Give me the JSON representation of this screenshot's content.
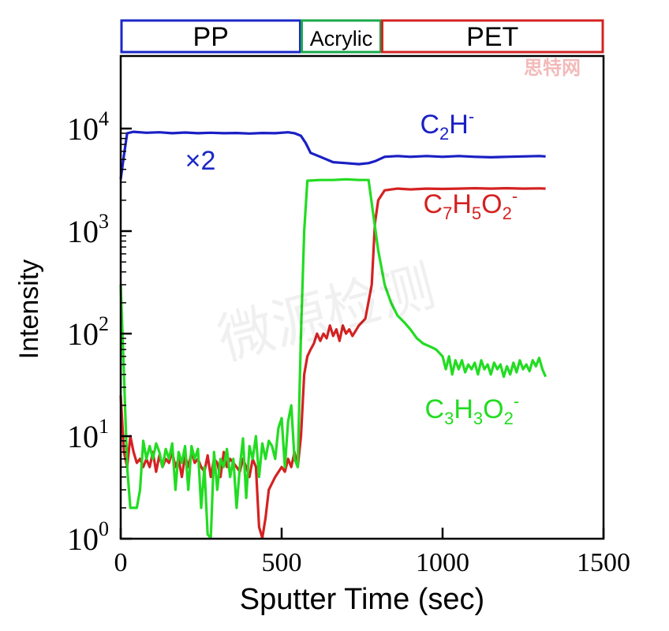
{
  "chart_data": {
    "type": "line",
    "title": "",
    "xlabel": "Sputter Time (sec)",
    "ylabel": "Intensity",
    "xlim": [
      0,
      1500
    ],
    "ylim": [
      1,
      50000
    ],
    "yscale": "log",
    "grid": false,
    "x_ticks": [
      0,
      500,
      1000,
      1500
    ],
    "y_ticks": [
      {
        "value": 1,
        "base": "10",
        "exp": "0"
      },
      {
        "value": 10,
        "base": "10",
        "exp": "1"
      },
      {
        "value": 100,
        "base": "10",
        "exp": "2"
      },
      {
        "value": 1000,
        "base": "10",
        "exp": "3"
      },
      {
        "value": 10000,
        "base": "10",
        "exp": "4"
      }
    ],
    "layers": [
      {
        "name": "PP",
        "start": 0,
        "end": 560,
        "color": "#1a28c8"
      },
      {
        "name": "Acrylic",
        "start": 560,
        "end": 810,
        "color": "#1aa84a"
      },
      {
        "name": "PET",
        "start": 810,
        "end": 1500,
        "color": "#d42424"
      }
    ],
    "annotations": [
      {
        "text": "×2",
        "x": 200,
        "y": 5500,
        "color": "#1a28c8"
      }
    ],
    "series": [
      {
        "name": "C2H-",
        "label_parts": [
          [
            "C",
            ""
          ],
          [
            "2",
            "sub"
          ],
          [
            "H",
            ""
          ],
          [
            "-",
            "sup"
          ]
        ],
        "label_at": {
          "x": 930,
          "y": 9000
        },
        "color": "#1a1fc4",
        "points": [
          [
            0,
            3200
          ],
          [
            10,
            5500
          ],
          [
            20,
            9000
          ],
          [
            40,
            9300
          ],
          [
            80,
            9100
          ],
          [
            120,
            9200
          ],
          [
            160,
            9000
          ],
          [
            200,
            9150
          ],
          [
            240,
            9000
          ],
          [
            280,
            9100
          ],
          [
            320,
            9000
          ],
          [
            360,
            9050
          ],
          [
            400,
            8950
          ],
          [
            440,
            9050
          ],
          [
            480,
            9000
          ],
          [
            520,
            9200
          ],
          [
            540,
            9000
          ],
          [
            560,
            8500
          ],
          [
            575,
            7200
          ],
          [
            590,
            5800
          ],
          [
            620,
            5300
          ],
          [
            660,
            4700
          ],
          [
            700,
            4600
          ],
          [
            740,
            4500
          ],
          [
            770,
            4600
          ],
          [
            790,
            4800
          ],
          [
            820,
            5300
          ],
          [
            860,
            5400
          ],
          [
            900,
            5300
          ],
          [
            950,
            5400
          ],
          [
            1000,
            5300
          ],
          [
            1050,
            5400
          ],
          [
            1100,
            5300
          ],
          [
            1150,
            5250
          ],
          [
            1200,
            5300
          ],
          [
            1250,
            5350
          ],
          [
            1300,
            5400
          ],
          [
            1320,
            5350
          ]
        ]
      },
      {
        "name": "C7H5O2-",
        "label_parts": [
          [
            "C",
            ""
          ],
          [
            "7",
            "sub"
          ],
          [
            "H",
            ""
          ],
          [
            "5",
            "sub"
          ],
          [
            "O",
            ""
          ],
          [
            "2",
            "sub"
          ],
          [
            "-",
            "sup"
          ]
        ],
        "label_at": {
          "x": 940,
          "y": 1500
        },
        "color": "#d42222",
        "points": [
          [
            0,
            25
          ],
          [
            10,
            7
          ],
          [
            20,
            5
          ],
          [
            30,
            10
          ],
          [
            40,
            7
          ],
          [
            50,
            5.5
          ],
          [
            60,
            6
          ],
          [
            70,
            5
          ],
          [
            80,
            6
          ],
          [
            90,
            5
          ],
          [
            100,
            7
          ],
          [
            110,
            4.5
          ],
          [
            120,
            6.5
          ],
          [
            130,
            5
          ],
          [
            140,
            6
          ],
          [
            150,
            5.5
          ],
          [
            160,
            7
          ],
          [
            170,
            5
          ],
          [
            180,
            6
          ],
          [
            190,
            4
          ],
          [
            200,
            6.5
          ],
          [
            210,
            5
          ],
          [
            220,
            7
          ],
          [
            230,
            5.5
          ],
          [
            240,
            6
          ],
          [
            250,
            5
          ],
          [
            260,
            4.5
          ],
          [
            270,
            6.5
          ],
          [
            280,
            4
          ],
          [
            290,
            6
          ],
          [
            300,
            5.5
          ],
          [
            310,
            4
          ],
          [
            320,
            7
          ],
          [
            330,
            5
          ],
          [
            340,
            6
          ],
          [
            350,
            5.5
          ],
          [
            360,
            5
          ],
          [
            370,
            4.5
          ],
          [
            380,
            6
          ],
          [
            390,
            5
          ],
          [
            400,
            4
          ],
          [
            410,
            6
          ],
          [
            420,
            5
          ],
          [
            430,
            1.3
          ],
          [
            440,
            0.9
          ],
          [
            450,
            1.6
          ],
          [
            460,
            3
          ],
          [
            480,
            4
          ],
          [
            500,
            5
          ],
          [
            510,
            4.5
          ],
          [
            520,
            6
          ],
          [
            530,
            5
          ],
          [
            540,
            7
          ],
          [
            550,
            5
          ],
          [
            560,
            10
          ],
          [
            570,
            40
          ],
          [
            580,
            60
          ],
          [
            590,
            70
          ],
          [
            600,
            80
          ],
          [
            610,
            100
          ],
          [
            620,
            85
          ],
          [
            630,
            100
          ],
          [
            640,
            90
          ],
          [
            650,
            120
          ],
          [
            660,
            95
          ],
          [
            670,
            110
          ],
          [
            680,
            85
          ],
          [
            690,
            120
          ],
          [
            700,
            100
          ],
          [
            710,
            110
          ],
          [
            720,
            95
          ],
          [
            740,
            120
          ],
          [
            760,
            140
          ],
          [
            780,
            300
          ],
          [
            790,
            1200
          ],
          [
            800,
            2000
          ],
          [
            820,
            2500
          ],
          [
            860,
            2600
          ],
          [
            900,
            2550
          ],
          [
            950,
            2600
          ],
          [
            1000,
            2580
          ],
          [
            1050,
            2600
          ],
          [
            1100,
            2620
          ],
          [
            1150,
            2600
          ],
          [
            1200,
            2620
          ],
          [
            1250,
            2600
          ],
          [
            1300,
            2610
          ],
          [
            1320,
            2600
          ]
        ]
      },
      {
        "name": "C3H3O2-",
        "label_parts": [
          [
            "C",
            ""
          ],
          [
            "3",
            "sub"
          ],
          [
            "H",
            ""
          ],
          [
            "3",
            "sub"
          ],
          [
            "O",
            ""
          ],
          [
            "2",
            "sub"
          ],
          [
            "-",
            "sup"
          ]
        ],
        "label_at": {
          "x": 945,
          "y": 15
        },
        "color": "#22dc22",
        "points": [
          [
            0,
            300
          ],
          [
            10,
            40
          ],
          [
            20,
            5
          ],
          [
            30,
            2
          ],
          [
            50,
            2
          ],
          [
            60,
            3
          ],
          [
            70,
            9
          ],
          [
            80,
            6
          ],
          [
            90,
            8
          ],
          [
            100,
            6
          ],
          [
            110,
            8.5
          ],
          [
            120,
            7
          ],
          [
            130,
            5
          ],
          [
            140,
            7.5
          ],
          [
            150,
            6
          ],
          [
            160,
            8.5
          ],
          [
            170,
            3
          ],
          [
            180,
            7
          ],
          [
            190,
            5.5
          ],
          [
            200,
            8
          ],
          [
            210,
            3
          ],
          [
            220,
            8
          ],
          [
            230,
            6
          ],
          [
            240,
            7.5
          ],
          [
            250,
            2
          ],
          [
            260,
            5
          ],
          [
            270,
            1.1
          ],
          [
            280,
            0.95
          ],
          [
            290,
            7
          ],
          [
            300,
            3
          ],
          [
            310,
            6
          ],
          [
            320,
            5
          ],
          [
            330,
            7.5
          ],
          [
            340,
            4
          ],
          [
            350,
            6
          ],
          [
            360,
            2
          ],
          [
            370,
            5
          ],
          [
            380,
            9.5
          ],
          [
            390,
            2.5
          ],
          [
            400,
            8
          ],
          [
            410,
            6
          ],
          [
            420,
            10
          ],
          [
            430,
            4
          ],
          [
            440,
            8.5
          ],
          [
            450,
            6
          ],
          [
            460,
            9
          ],
          [
            470,
            8
          ],
          [
            480,
            6
          ],
          [
            490,
            12
          ],
          [
            500,
            15
          ],
          [
            510,
            5
          ],
          [
            520,
            14
          ],
          [
            530,
            20
          ],
          [
            540,
            6
          ],
          [
            550,
            5
          ],
          [
            560,
            100
          ],
          [
            570,
            1000
          ],
          [
            580,
            3100
          ],
          [
            620,
            3150
          ],
          [
            660,
            3150
          ],
          [
            700,
            3200
          ],
          [
            740,
            3150
          ],
          [
            770,
            3150
          ],
          [
            790,
            1100
          ],
          [
            800,
            650
          ],
          [
            820,
            300
          ],
          [
            840,
            200
          ],
          [
            860,
            150
          ],
          [
            880,
            130
          ],
          [
            900,
            110
          ],
          [
            920,
            90
          ],
          [
            940,
            80
          ],
          [
            960,
            75
          ],
          [
            980,
            70
          ],
          [
            1000,
            60
          ],
          [
            1010,
            45
          ],
          [
            1020,
            60
          ],
          [
            1030,
            40
          ],
          [
            1040,
            55
          ],
          [
            1050,
            45
          ],
          [
            1060,
            55
          ],
          [
            1070,
            42
          ],
          [
            1080,
            50
          ],
          [
            1090,
            45
          ],
          [
            1100,
            52
          ],
          [
            1110,
            40
          ],
          [
            1120,
            55
          ],
          [
            1130,
            45
          ],
          [
            1140,
            50
          ],
          [
            1150,
            40
          ],
          [
            1160,
            52
          ],
          [
            1170,
            45
          ],
          [
            1180,
            50
          ],
          [
            1190,
            38
          ],
          [
            1200,
            48
          ],
          [
            1210,
            40
          ],
          [
            1220,
            52
          ],
          [
            1230,
            42
          ],
          [
            1240,
            55
          ],
          [
            1250,
            45
          ],
          [
            1260,
            50
          ],
          [
            1270,
            43
          ],
          [
            1280,
            55
          ],
          [
            1290,
            48
          ],
          [
            1300,
            58
          ],
          [
            1310,
            45
          ],
          [
            1320,
            38
          ]
        ]
      }
    ]
  },
  "watermark": {
    "main": "微源检测",
    "corner": "思特网"
  }
}
